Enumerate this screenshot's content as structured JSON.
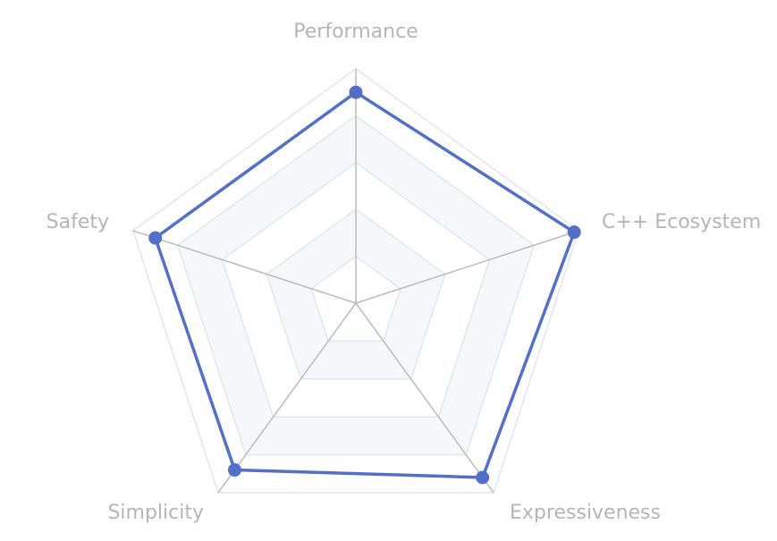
{
  "chart_data": {
    "type": "radar",
    "indicators": [
      "Performance",
      "C++ Ecosystem",
      "Expressiveness",
      "Simplicity",
      "Safety"
    ],
    "max": 100,
    "series": [
      {
        "values": [
          90,
          98,
          92,
          88,
          90
        ]
      }
    ],
    "split_levels": 5,
    "grid": true,
    "legend": "none",
    "colors": {
      "series": "#5470c6",
      "split_line": "#e0e6f1",
      "split_area_alt": "#f5f7fb",
      "axis_line": "#bbbbbb",
      "label": "#b5b5b5"
    }
  }
}
